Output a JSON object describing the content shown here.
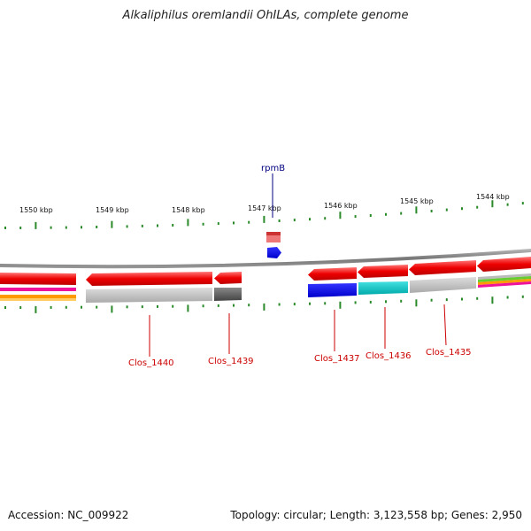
{
  "title": "Alkaliphilus oremlandii OhILAs, complete genome",
  "footer": {
    "accession": "Accession: NC_009922",
    "stats": "Topology: circular; Length: 3,123,558 bp; Genes: 2,950"
  },
  "kbp_labels": [
    "1550 kbp",
    "1549 kbp",
    "1548 kbp",
    "1547 kbp",
    "1546 kbp",
    "1545 kbp",
    "1544 kbp"
  ],
  "gene_labels": [
    "rpmB",
    "Clos_1440",
    "Clos_1439",
    "Clos_1437",
    "Clos_1436",
    "Clos_1435"
  ],
  "colors": {
    "cds": "#ff0000",
    "backbone": "#888888",
    "tick": "#2a8a2a",
    "gene_label": "#cc0000",
    "rna_label": "#000080",
    "blue": "#0000ff",
    "cyan": "#00cccc",
    "gray": "#bbbbbb"
  }
}
